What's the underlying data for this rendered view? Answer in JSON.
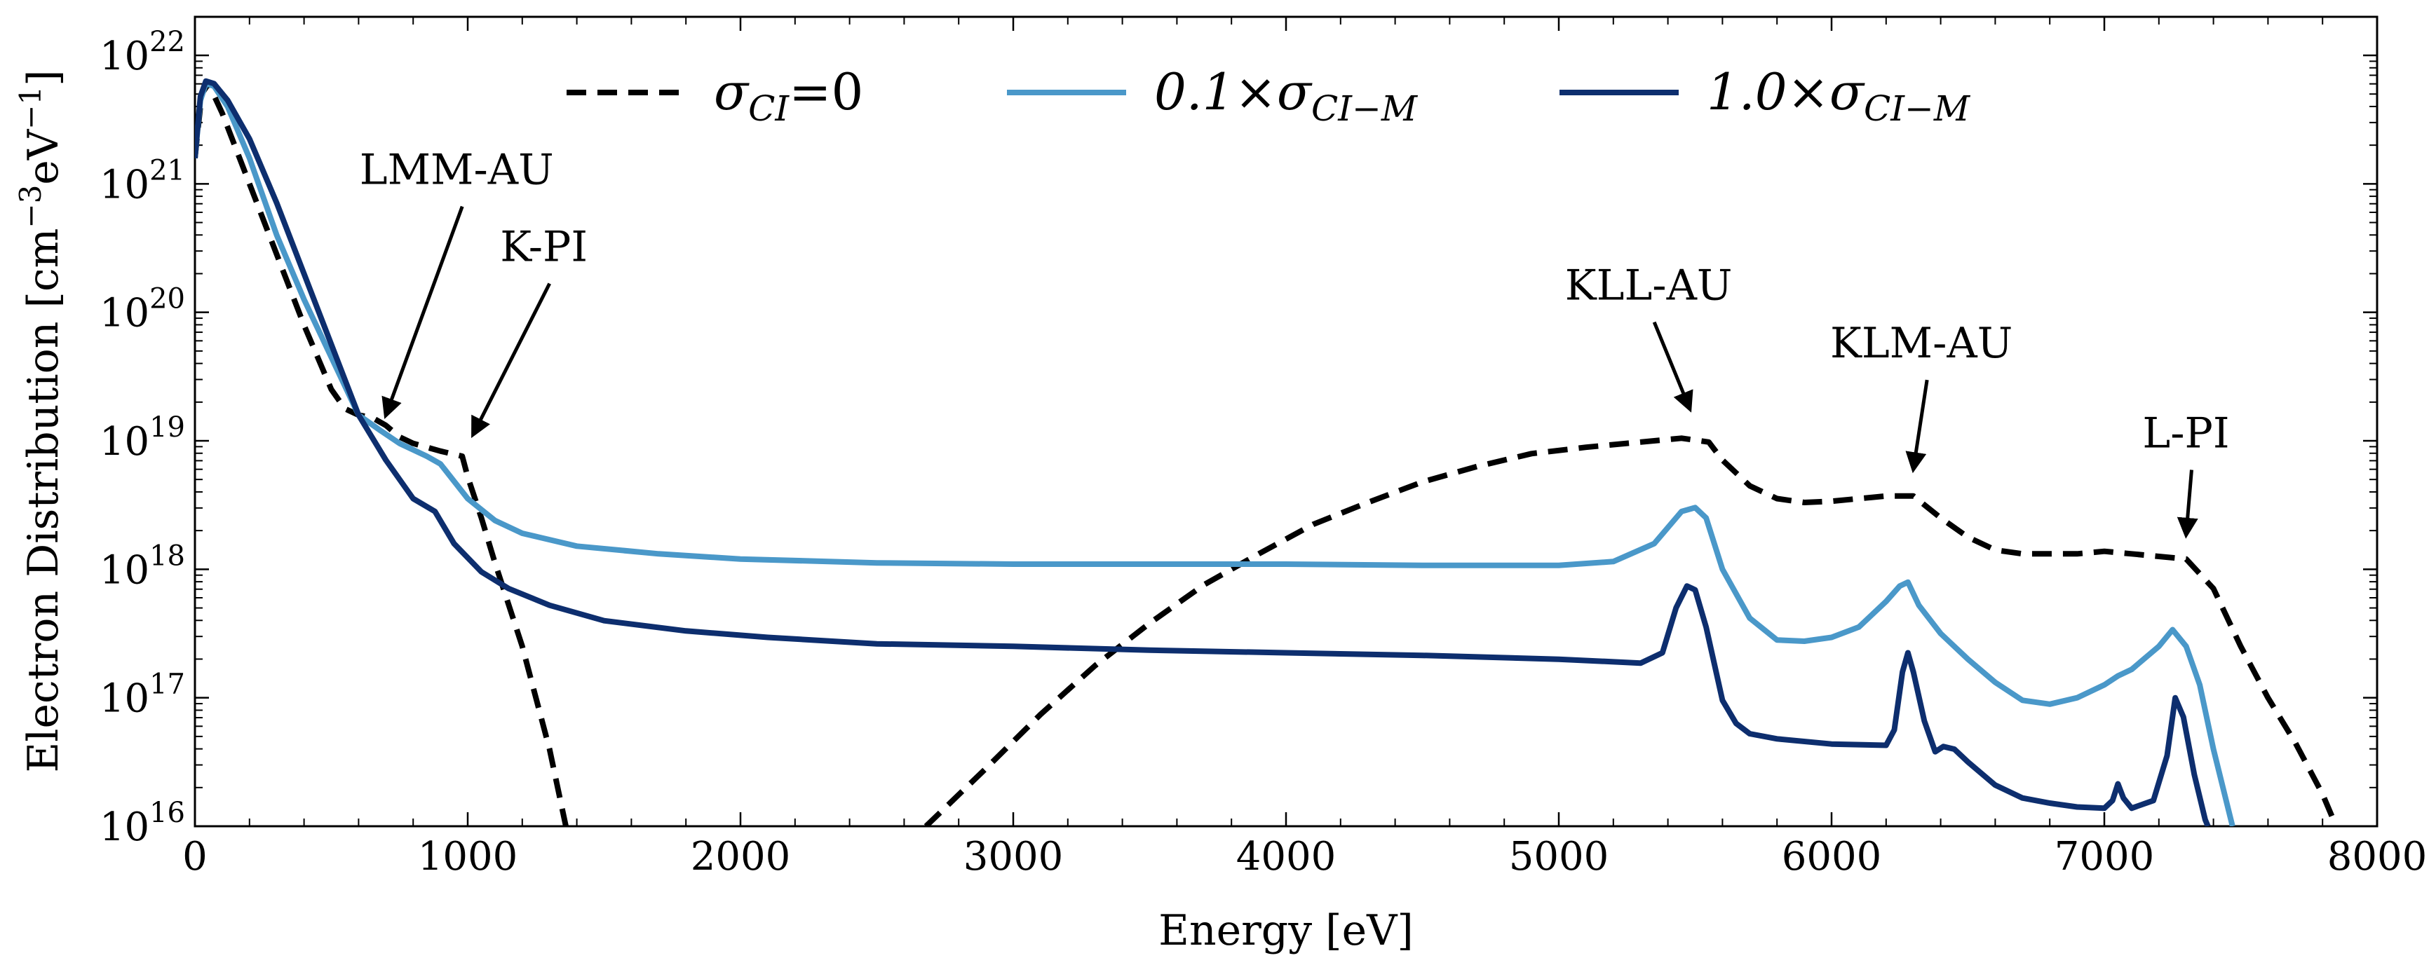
{
  "chart_data": {
    "type": "line",
    "title": "",
    "xlabel": "Energy [eV]",
    "ylabel": {
      "main": "Electron Distribution [cm",
      "exp1": "−3",
      "mid": "eV",
      "exp2": "−1",
      "end": "]"
    },
    "xlim": [
      0,
      8000
    ],
    "ylim_log10": [
      16,
      22.3
    ],
    "x_ticks": [
      0,
      1000,
      2000,
      3000,
      4000,
      5000,
      6000,
      7000,
      8000
    ],
    "x_tick_labels": [
      "0",
      "1000",
      "2000",
      "3000",
      "4000",
      "5000",
      "6000",
      "7000",
      "8000"
    ],
    "y_ticks": [
      {
        "base": "10",
        "exp": "16",
        "log10": 16
      },
      {
        "base": "10",
        "exp": "17",
        "log10": 17
      },
      {
        "base": "10",
        "exp": "18",
        "log10": 18
      },
      {
        "base": "10",
        "exp": "19",
        "log10": 19
      },
      {
        "base": "10",
        "exp": "20",
        "log10": 20
      },
      {
        "base": "10",
        "exp": "21",
        "log10": 21
      },
      {
        "base": "10",
        "exp": "22",
        "log10": 22
      }
    ],
    "legend": {
      "placement": "top-center",
      "entries": [
        {
          "series": 0,
          "main": "σ",
          "sub": "CI",
          "rest": "=0"
        },
        {
          "series": 1,
          "main": "0.1×σ",
          "sub": "CI−M",
          "rest": ""
        },
        {
          "series": 2,
          "main": "1.0×σ",
          "sub": "CI−M",
          "rest": ""
        }
      ]
    },
    "series": [
      {
        "name": "σCI=0",
        "color": "#000000",
        "style": "dashed",
        "points_log10": [
          [
            0,
            21.2
          ],
          [
            25,
            21.7
          ],
          [
            50,
            21.78
          ],
          [
            100,
            21.55
          ],
          [
            200,
            21.0
          ],
          [
            300,
            20.45
          ],
          [
            400,
            19.9
          ],
          [
            500,
            19.4
          ],
          [
            550,
            19.25
          ],
          [
            600,
            19.2
          ],
          [
            650,
            19.18
          ],
          [
            700,
            19.12
          ],
          [
            750,
            19.03
          ],
          [
            800,
            18.98
          ],
          [
            900,
            18.92
          ],
          [
            980,
            18.88
          ],
          [
            1000,
            18.72
          ],
          [
            1050,
            18.4
          ],
          [
            1100,
            18.05
          ],
          [
            1200,
            17.4
          ],
          [
            1300,
            16.6
          ],
          [
            1360,
            16.0
          ]
        ],
        "points_log10_high": [
          [
            2680,
            16.0
          ],
          [
            2900,
            16.45
          ],
          [
            3100,
            16.87
          ],
          [
            3300,
            17.25
          ],
          [
            3500,
            17.58
          ],
          [
            3700,
            17.88
          ],
          [
            3900,
            18.12
          ],
          [
            4100,
            18.35
          ],
          [
            4300,
            18.52
          ],
          [
            4500,
            18.68
          ],
          [
            4700,
            18.8
          ],
          [
            4900,
            18.9
          ],
          [
            5100,
            18.95
          ],
          [
            5300,
            18.99
          ],
          [
            5450,
            19.02
          ],
          [
            5550,
            18.99
          ],
          [
            5600,
            18.85
          ],
          [
            5700,
            18.65
          ],
          [
            5800,
            18.55
          ],
          [
            5900,
            18.52
          ],
          [
            6000,
            18.53
          ],
          [
            6100,
            18.55
          ],
          [
            6200,
            18.57
          ],
          [
            6300,
            18.57
          ],
          [
            6400,
            18.4
          ],
          [
            6500,
            18.25
          ],
          [
            6600,
            18.15
          ],
          [
            6700,
            18.12
          ],
          [
            6900,
            18.12
          ],
          [
            7000,
            18.14
          ],
          [
            7100,
            18.12
          ],
          [
            7300,
            18.08
          ],
          [
            7400,
            17.85
          ],
          [
            7500,
            17.4
          ],
          [
            7600,
            17.0
          ],
          [
            7700,
            16.65
          ],
          [
            7800,
            16.25
          ],
          [
            7850,
            16.0
          ]
        ]
      },
      {
        "name": "0.1×σCI−M",
        "color": "#4a98c9",
        "style": "solid",
        "points_log10": [
          [
            0,
            21.2
          ],
          [
            20,
            21.65
          ],
          [
            40,
            21.78
          ],
          [
            70,
            21.76
          ],
          [
            120,
            21.6
          ],
          [
            200,
            21.2
          ],
          [
            300,
            20.6
          ],
          [
            400,
            20.1
          ],
          [
            500,
            19.65
          ],
          [
            600,
            19.2
          ],
          [
            680,
            19.08
          ],
          [
            750,
            18.98
          ],
          [
            850,
            18.88
          ],
          [
            900,
            18.82
          ],
          [
            1000,
            18.55
          ],
          [
            1100,
            18.38
          ],
          [
            1200,
            18.28
          ],
          [
            1400,
            18.18
          ],
          [
            1700,
            18.12
          ],
          [
            2000,
            18.08
          ],
          [
            2500,
            18.05
          ],
          [
            3000,
            18.04
          ],
          [
            3500,
            18.04
          ],
          [
            4000,
            18.04
          ],
          [
            4500,
            18.03
          ],
          [
            5000,
            18.03
          ],
          [
            5200,
            18.06
          ],
          [
            5350,
            18.2
          ],
          [
            5450,
            18.45
          ],
          [
            5500,
            18.48
          ],
          [
            5540,
            18.4
          ],
          [
            5600,
            18.0
          ],
          [
            5700,
            17.62
          ],
          [
            5800,
            17.45
          ],
          [
            5900,
            17.44
          ],
          [
            6000,
            17.47
          ],
          [
            6100,
            17.55
          ],
          [
            6200,
            17.75
          ],
          [
            6250,
            17.87
          ],
          [
            6280,
            17.9
          ],
          [
            6320,
            17.72
          ],
          [
            6400,
            17.5
          ],
          [
            6500,
            17.3
          ],
          [
            6600,
            17.12
          ],
          [
            6700,
            16.98
          ],
          [
            6800,
            16.95
          ],
          [
            6900,
            17.0
          ],
          [
            7000,
            17.1
          ],
          [
            7050,
            17.17
          ],
          [
            7100,
            17.22
          ],
          [
            7200,
            17.4
          ],
          [
            7250,
            17.53
          ],
          [
            7300,
            17.4
          ],
          [
            7350,
            17.1
          ],
          [
            7400,
            16.6
          ],
          [
            7470,
            16.0
          ]
        ]
      },
      {
        "name": "1.0×σCI−M",
        "color": "#0d2e6e",
        "style": "solid",
        "points_log10": [
          [
            0,
            21.2
          ],
          [
            20,
            21.68
          ],
          [
            40,
            21.8
          ],
          [
            70,
            21.78
          ],
          [
            120,
            21.65
          ],
          [
            200,
            21.35
          ],
          [
            300,
            20.85
          ],
          [
            400,
            20.3
          ],
          [
            500,
            19.75
          ],
          [
            600,
            19.2
          ],
          [
            700,
            18.85
          ],
          [
            800,
            18.55
          ],
          [
            880,
            18.45
          ],
          [
            950,
            18.2
          ],
          [
            1050,
            17.98
          ],
          [
            1150,
            17.85
          ],
          [
            1300,
            17.72
          ],
          [
            1500,
            17.6
          ],
          [
            1800,
            17.52
          ],
          [
            2100,
            17.47
          ],
          [
            2500,
            17.42
          ],
          [
            3000,
            17.4
          ],
          [
            3500,
            17.37
          ],
          [
            4000,
            17.35
          ],
          [
            4500,
            17.33
          ],
          [
            5000,
            17.3
          ],
          [
            5300,
            17.27
          ],
          [
            5380,
            17.35
          ],
          [
            5430,
            17.7
          ],
          [
            5470,
            17.87
          ],
          [
            5500,
            17.84
          ],
          [
            5540,
            17.55
          ],
          [
            5600,
            16.98
          ],
          [
            5650,
            16.8
          ],
          [
            5700,
            16.72
          ],
          [
            5800,
            16.68
          ],
          [
            6000,
            16.64
          ],
          [
            6200,
            16.63
          ],
          [
            6230,
            16.75
          ],
          [
            6260,
            17.2
          ],
          [
            6280,
            17.35
          ],
          [
            6300,
            17.2
          ],
          [
            6340,
            16.82
          ],
          [
            6380,
            16.58
          ],
          [
            6410,
            16.62
          ],
          [
            6450,
            16.6
          ],
          [
            6500,
            16.5
          ],
          [
            6600,
            16.32
          ],
          [
            6700,
            16.22
          ],
          [
            6800,
            16.18
          ],
          [
            6900,
            16.15
          ],
          [
            7000,
            16.14
          ],
          [
            7030,
            16.2
          ],
          [
            7050,
            16.33
          ],
          [
            7070,
            16.22
          ],
          [
            7100,
            16.14
          ],
          [
            7180,
            16.2
          ],
          [
            7230,
            16.55
          ],
          [
            7260,
            17.0
          ],
          [
            7290,
            16.85
          ],
          [
            7330,
            16.4
          ],
          [
            7370,
            16.05
          ],
          [
            7380,
            16.0
          ]
        ]
      }
    ],
    "annotations": [
      {
        "text": "LMM-AU",
        "target": [
          700,
          19.2
        ],
        "label_at": [
          980,
          20.9
        ]
      },
      {
        "text": "K-PI",
        "target": [
          1020,
          19.05
        ],
        "label_at": [
          1300,
          20.3
        ]
      },
      {
        "text": "KLL-AU",
        "target": [
          5480,
          19.25
        ],
        "label_at": [
          5350,
          20.0
        ]
      },
      {
        "text": "KLM-AU",
        "target": [
          6300,
          18.78
        ],
        "label_at": [
          6350,
          19.55
        ]
      },
      {
        "text": "L-PI",
        "target": [
          7300,
          18.27
        ],
        "label_at": [
          7320,
          18.85
        ]
      }
    ]
  }
}
